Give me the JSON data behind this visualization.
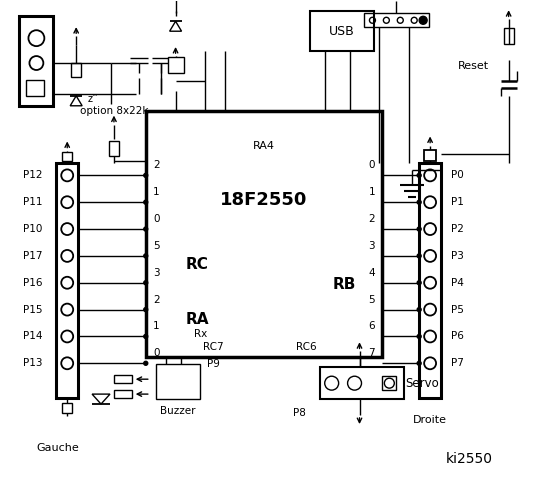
{
  "bg_color": "#ffffff",
  "line_color": "#000000",
  "chip_label": "18F2550",
  "chip_ra4": "RA4",
  "chip_rc_label": "RC",
  "chip_ra_label": "RA",
  "chip_rb_label": "RB",
  "chip_rc7": "RC7",
  "chip_rc6": "RC6",
  "chip_rx": "Rx",
  "left_pins": [
    "P12",
    "P11",
    "P10",
    "P17",
    "P16",
    "P15",
    "P14",
    "P13"
  ],
  "left_nums": [
    "2",
    "1",
    "0",
    "5",
    "3",
    "2",
    "1",
    "0"
  ],
  "right_pins": [
    "P0",
    "P1",
    "P2",
    "P3",
    "P4",
    "P5",
    "P6",
    "P7"
  ],
  "right_nums": [
    "0",
    "1",
    "2",
    "3",
    "4",
    "5",
    "6",
    "7"
  ],
  "label_gauche": "Gauche",
  "label_droite": "Droite",
  "label_servo": "Servo",
  "label_buzzer": "Buzzer",
  "label_usb": "USB",
  "label_reset": "Reset",
  "label_option": "option 8x22k",
  "label_p8": "P8",
  "label_p9": "P9",
  "label_ki2550": "ki2550"
}
